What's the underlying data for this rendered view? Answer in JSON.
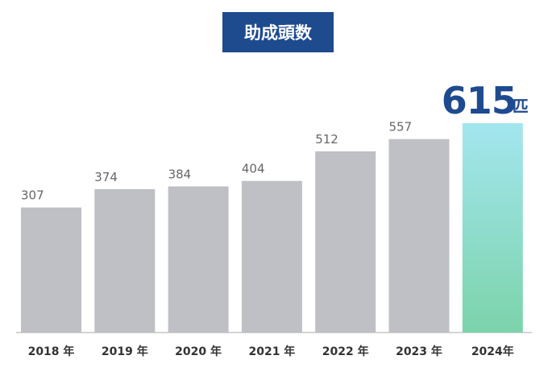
{
  "chart_data": {
    "type": "bar",
    "title": "助成頭数",
    "categories": [
      "2018 年",
      "2019 年",
      "2020 年",
      "2021 年",
      "2022 年",
      "2023 年",
      "2024年"
    ],
    "values": [
      307,
      374,
      384,
      404,
      512,
      557,
      615
    ],
    "color": "#bfc0c5",
    "ylim": [
      -150,
      615
    ],
    "highlight": {
      "index": 6,
      "colors": [
        "#a3e6ef",
        "#7cd3aa"
      ],
      "label_color": "#1e4b8f",
      "unit": "匹"
    }
  }
}
